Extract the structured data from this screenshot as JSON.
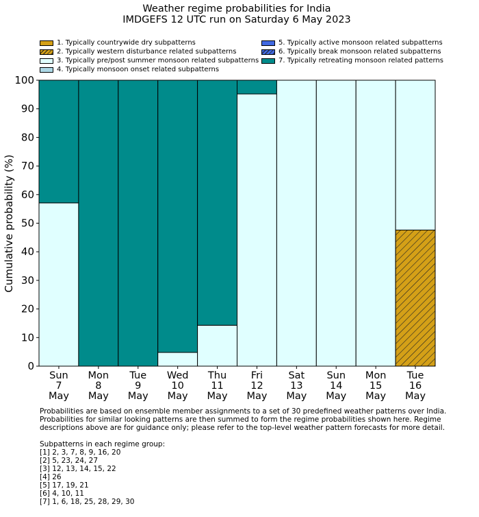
{
  "title": "Weather regime probabilities for India",
  "subtitle": "IMDGEFS 12 UTC run on Saturday 6 May 2023",
  "legend": [
    {
      "label": "1. Typically countrywide dry subpatterns",
      "color": "#d4a017",
      "hatch": false
    },
    {
      "label": "2. Typically western disturbance related subpatterns",
      "color": "#d4a017",
      "hatch": true
    },
    {
      "label": "3. Typically pre/post summer monsoon related subpatterns",
      "color": "#e0ffff",
      "hatch": false
    },
    {
      "label": "4. Typically monsoon onset related subpatterns",
      "color": "#add8e6",
      "hatch": false
    },
    {
      "label": "5. Typically active monsoon related subpatterns",
      "color": "#4169e1",
      "hatch": false
    },
    {
      "label": "6. Typically break monsoon related subpatterns",
      "color": "#4169e1",
      "hatch": true
    },
    {
      "label": "7. Typically retreating monsoon related patterns",
      "color": "#008b8b",
      "hatch": false
    }
  ],
  "chart_data": {
    "type": "bar",
    "stacked": true,
    "ylabel": "Cumulative probability (%)",
    "ylim": [
      0,
      100
    ],
    "yticks": [
      0,
      10,
      20,
      30,
      40,
      50,
      60,
      70,
      80,
      90,
      100
    ],
    "categories": [
      [
        "Sun",
        "7",
        "May"
      ],
      [
        "Mon",
        "8",
        "May"
      ],
      [
        "Tue",
        "9",
        "May"
      ],
      [
        "Wed",
        "10",
        "May"
      ],
      [
        "Thu",
        "11",
        "May"
      ],
      [
        "Fri",
        "12",
        "May"
      ],
      [
        "Sat",
        "13",
        "May"
      ],
      [
        "Sun",
        "14",
        "May"
      ],
      [
        "Mon",
        "15",
        "May"
      ],
      [
        "Tue",
        "16",
        "May"
      ]
    ],
    "series": [
      {
        "name": "2. Typically western disturbance related subpatterns",
        "values": [
          0,
          0,
          0,
          0,
          0,
          0,
          0,
          0,
          0,
          47.6
        ]
      },
      {
        "name": "3. Typically pre/post summer monsoon related subpatterns",
        "values": [
          57.1,
          0,
          0,
          4.8,
          14.3,
          95.2,
          100,
          100,
          100,
          52.4
        ]
      },
      {
        "name": "7. Typically retreating monsoon related patterns",
        "values": [
          42.9,
          100,
          100,
          95.2,
          85.7,
          4.8,
          0,
          0,
          0,
          0
        ]
      }
    ],
    "series_colors": [
      "#d4a017",
      "#e0ffff",
      "#008b8b"
    ],
    "series_hatch": [
      true,
      false,
      false
    ]
  },
  "notes": {
    "lines": [
      "Probabilities are based on ensemble member assignments to a set of 30 predefined weather patterns over India.",
      "Probabilities for similar looking patterns are then summed to form the regime probabilities shown here. Regime",
      "descriptions above are for guidance only; please refer to the top-level weather pattern forecasts for more detail."
    ],
    "groups_heading": "Subpatterns in each regime group:",
    "groups": [
      "[1] 2, 3, 7, 8, 9, 16, 20",
      "[2] 5, 23, 24, 27",
      "[3] 12, 13, 14, 15, 22",
      "[4] 26",
      "[5] 17, 19, 21",
      "[6] 4, 10, 11",
      "[7] 1, 6, 18, 25, 28, 29, 30"
    ]
  }
}
